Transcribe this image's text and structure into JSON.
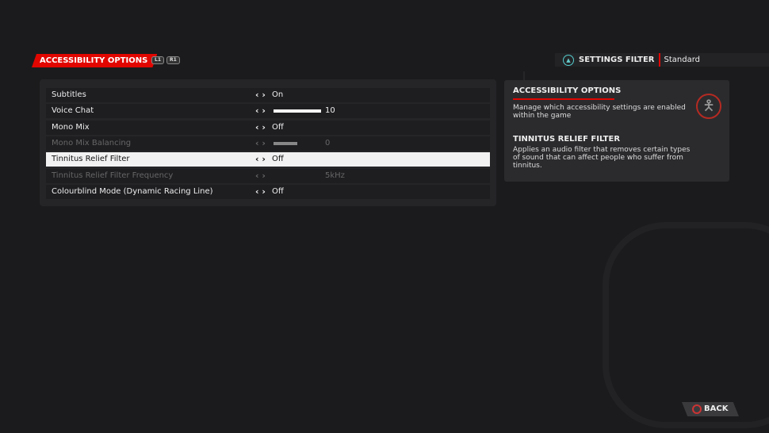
{
  "header": {
    "title": "ACCESSIBILITY OPTIONS",
    "prev_button": "L1",
    "next_button": "R1"
  },
  "filter": {
    "icon": "triangle-icon",
    "label": "SETTINGS FILTER",
    "value": "Standard"
  },
  "settings": [
    {
      "name": "Subtitles",
      "value": "On",
      "enabled": true
    },
    {
      "name": "Voice Chat",
      "value": "10",
      "slider_percent": 100,
      "enabled": true
    },
    {
      "name": "Mono Mix",
      "value": "Off",
      "enabled": true
    },
    {
      "name": "Mono Mix Balancing",
      "value": "0",
      "slider_percent": 50,
      "enabled": false
    },
    {
      "name": "Tinnitus Relief Filter",
      "value": "Off",
      "enabled": true,
      "selected": true
    },
    {
      "name": "Tinnitus Relief Filter Frequency",
      "value": "5kHz",
      "enabled": false
    },
    {
      "name": "Colourblind Mode (Dynamic Racing Line)",
      "value": "Off",
      "enabled": true
    }
  ],
  "info": {
    "section_title": "ACCESSIBILITY OPTIONS",
    "section_desc": "Manage which accessibility settings are enabled within the game",
    "item_title": "TINNITUS RELIEF FILTER",
    "item_desc": "Applies an audio filter that removes certain types of sound that can affect people who suffer from tinnitus."
  },
  "footer": {
    "back_label": "BACK"
  },
  "colors": {
    "accent": "#e10600",
    "selected_row": "#f2f2f2"
  }
}
